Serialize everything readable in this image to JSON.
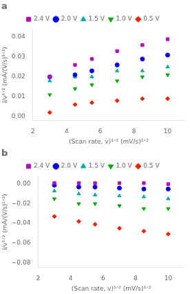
{
  "chart_data": [
    {
      "type": "scatter",
      "title": "a",
      "xlabel": "(Scan rate, v)¹ᐟ² (mV/s)¹ᐟ²",
      "ylabel": "i/v¹ᐟ² (mA/(V/s)¹ᐟ²)",
      "x": [
        3.0,
        4.5,
        5.5,
        7.0,
        8.5,
        10.0
      ],
      "series": [
        {
          "name": "2.4 V",
          "color": "#BB00BB",
          "marker": "square",
          "values": [
            0.02,
            0.026,
            0.029,
            0.033,
            0.036,
            0.039
          ]
        },
        {
          "name": "2.0 V",
          "color": "#0000EE",
          "marker": "circle",
          "values": [
            0.02,
            0.021,
            0.023,
            0.026,
            0.029,
            0.031
          ]
        },
        {
          "name": "1.5 V",
          "color": "#00AAAA",
          "marker": "triangle-up",
          "values": [
            0.018,
            0.02,
            0.02,
            0.023,
            0.023,
            0.025
          ]
        },
        {
          "name": "1.0 V",
          "color": "#00AA00",
          "marker": "triangle-down",
          "values": [
            0.011,
            0.014,
            0.016,
            0.018,
            0.02,
            0.021
          ]
        },
        {
          "name": "0.5 V",
          "color": "#EE2200",
          "marker": "diamond",
          "values": [
            0.002,
            0.006,
            0.007,
            0.008,
            0.009,
            0.009
          ]
        }
      ],
      "xlim": [
        2,
        11
      ],
      "xticks": [
        2,
        4,
        6,
        8,
        10
      ],
      "ylim": [
        -0.002,
        0.044
      ],
      "yticks": [
        {
          "value": 0,
          "label": "0.00"
        },
        0.01,
        0.02,
        0.03,
        0.04
      ],
      "grid": false,
      "legend": "top"
    },
    {
      "type": "scatter",
      "title": "b",
      "xlabel": "(Scan rate, v)¹ᐟ² (mV/s)¹ᐟ²",
      "ylabel": "i/v¹ᐟ² (mA/(V/s)¹ᐟ²)",
      "x": [
        3.0,
        4.5,
        5.5,
        7.0,
        8.5,
        10.0
      ],
      "series": [
        {
          "name": "2.4 V",
          "color": "#BB00BB",
          "marker": "square",
          "values": [
            0.001,
            0.001,
            0.001,
            0.001,
            0.001,
            0.0
          ]
        },
        {
          "name": "2.0 V",
          "color": "#0000EE",
          "marker": "circle",
          "values": [
            -0.001,
            -0.003,
            -0.003,
            -0.004,
            -0.005,
            -0.005
          ]
        },
        {
          "name": "1.5 V",
          "color": "#00AAAA",
          "marker": "triangle-up",
          "values": [
            -0.007,
            -0.01,
            -0.011,
            -0.012,
            -0.013,
            -0.015
          ]
        },
        {
          "name": "1.0 V",
          "color": "#00AA00",
          "marker": "triangle-down",
          "values": [
            -0.015,
            -0.02,
            -0.02,
            -0.022,
            -0.025,
            -0.025
          ]
        },
        {
          "name": "0.5 V",
          "color": "#EE2200",
          "marker": "diamond",
          "values": [
            -0.033,
            -0.038,
            -0.041,
            -0.045,
            -0.048,
            -0.051
          ]
        }
      ],
      "xlim": [
        2,
        11
      ],
      "xticks": [
        2,
        4,
        6,
        8,
        10
      ],
      "ylim": [
        -0.085,
        0.008
      ],
      "yticks": [
        {
          "value": 0,
          "label": "0.00"
        },
        {
          "value": -0.02,
          "label": "−0.02"
        },
        {
          "value": -0.04,
          "label": "−0.04"
        },
        {
          "value": -0.06,
          "label": "−0.06"
        },
        {
          "value": -0.08,
          "label": "−0.08"
        }
      ],
      "grid": false,
      "legend": "top"
    }
  ]
}
